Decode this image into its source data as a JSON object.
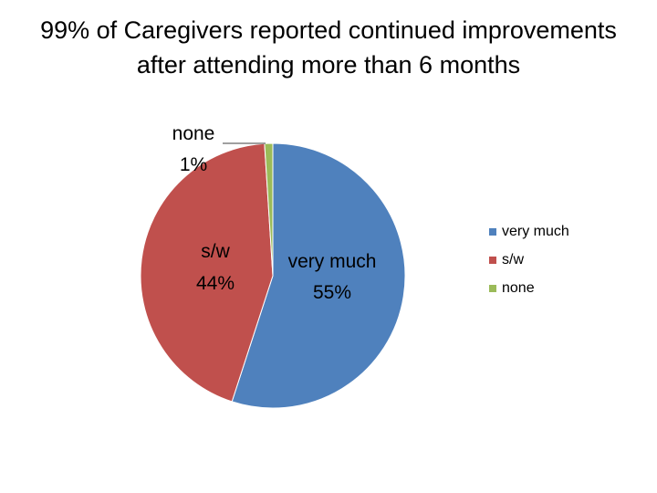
{
  "chart_data": {
    "type": "pie",
    "title": "99% of Caregivers reported continued improvements after attending more than 6 months",
    "categories": [
      "very much",
      "s/w",
      "none"
    ],
    "values": [
      55,
      44,
      1
    ],
    "percent_labels": [
      "55%",
      "44%",
      "1%"
    ],
    "colors": [
      "#4f81bd",
      "#c0504d",
      "#9bbb59"
    ],
    "legend": {
      "entries": [
        "very much",
        "s/w",
        "none"
      ],
      "placement": "right"
    }
  }
}
